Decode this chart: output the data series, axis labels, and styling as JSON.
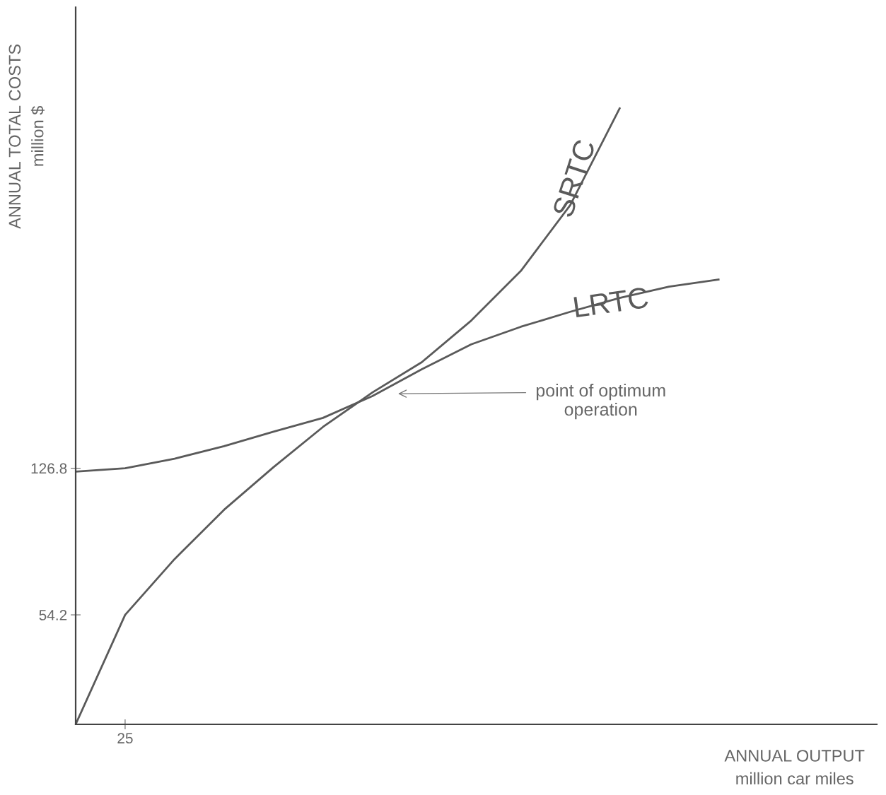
{
  "chart_data": {
    "type": "line",
    "xlabel": "ANNUAL OUTPUT\nmillion car miles",
    "ylabel": "ANNUAL TOTAL COSTS\nmillion $",
    "categories": [
      null,
      "25",
      null,
      null,
      null,
      null,
      null,
      null,
      null,
      null,
      null,
      null,
      null,
      null,
      null,
      null,
      null
    ],
    "ylim": [
      0,
      355
    ],
    "yticks": [
      54.2,
      126.8
    ],
    "grid": false,
    "legend": false,
    "marker": "none",
    "line_style": "solid",
    "series": [
      {
        "name": "SRTC",
        "color": "#5a5a5a",
        "values": [
          0,
          54.2,
          81.8,
          106.2,
          127.3,
          147.2,
          164.3,
          179.3,
          199.9,
          224.4,
          257,
          304.9,
          null,
          null,
          null,
          null,
          null
        ]
      },
      {
        "name": "LRTC",
        "color": "#5a5a5a",
        "values": [
          125.1,
          126.8,
          131.5,
          137.7,
          144.9,
          151.7,
          162.5,
          175.8,
          188.1,
          196.8,
          204.2,
          211.1,
          216.7,
          220.2,
          null,
          null,
          null
        ]
      }
    ],
    "annotations": [
      "point of optimum\noperation"
    ]
  }
}
